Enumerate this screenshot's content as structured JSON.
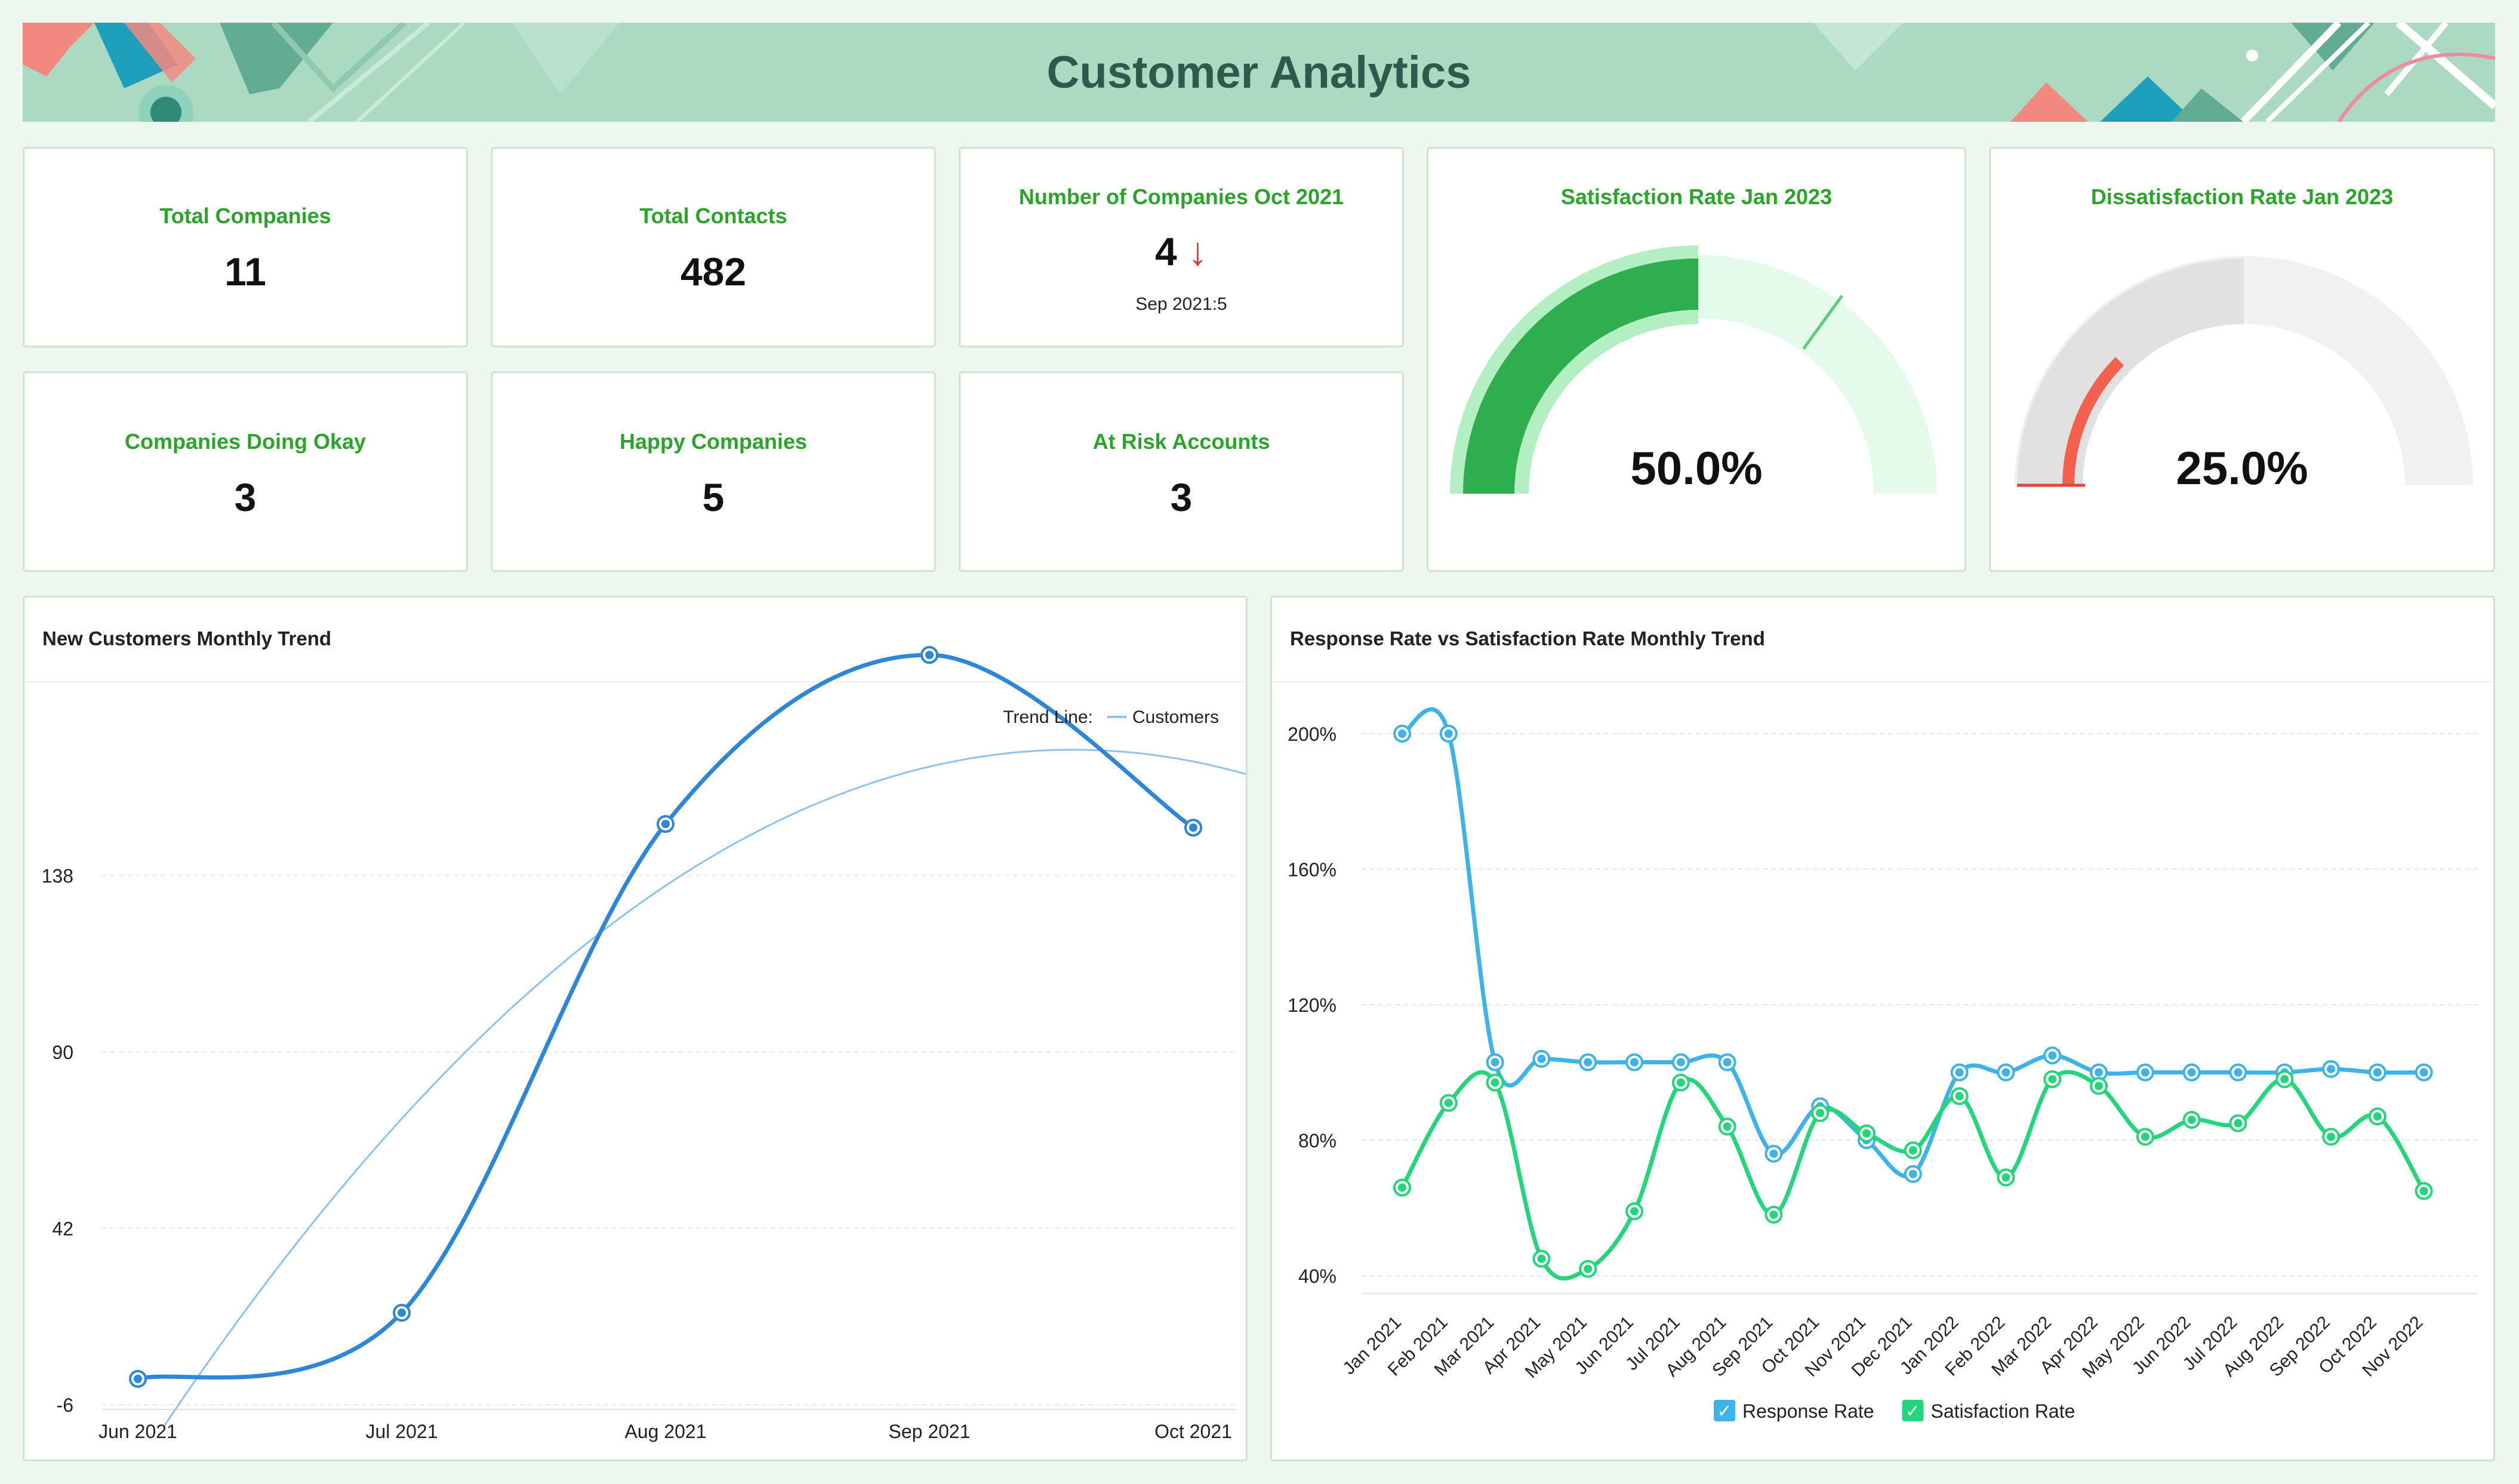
{
  "page_title": "Customer Analytics",
  "kpis": {
    "total_companies": {
      "label": "Total Companies",
      "value": "11"
    },
    "total_contacts": {
      "label": "Total Contacts",
      "value": "482"
    },
    "companies_oct": {
      "label": "Number of Companies Oct 2021",
      "value": "4",
      "trend_arrow": "↓",
      "comparison": "Sep 2021:5"
    },
    "doing_okay": {
      "label": "Companies Doing Okay",
      "value": "3"
    },
    "happy": {
      "label": "Happy Companies",
      "value": "5"
    },
    "at_risk": {
      "label": "At Risk Accounts",
      "value": "3"
    }
  },
  "gauges": {
    "satisfaction": {
      "label": "Satisfaction Rate Jan 2023",
      "value_text": "50.0%",
      "value": 0.5,
      "target": 0.7,
      "color": "#2fae4f",
      "track_color": "#e4fbe9"
    },
    "dissatisfaction": {
      "label": "Dissatisfaction Rate Jan 2023",
      "value_text": "25.0%",
      "value": 0.25,
      "color": "#f4604e",
      "track_color": "#f1f1f1",
      "inner_track_color": "#e1e1e1"
    }
  },
  "chart_data": [
    {
      "type": "line",
      "title": "New Customers Monthly Trend",
      "categories": [
        "Jun 2021",
        "Jul 2021",
        "Aug 2021",
        "Sep 2021",
        "Oct 2021"
      ],
      "series": [
        {
          "name": "Customers",
          "values": [
            1,
            19,
            152,
            198,
            151
          ],
          "color": "#2d86d8"
        }
      ],
      "trend_line": {
        "label": "Trend Line:",
        "type": "polynomial"
      },
      "y_ticks": [
        "-6",
        "42",
        "90",
        "138"
      ],
      "ylim": [
        -6,
        186
      ],
      "legend": "top-right",
      "grid": true
    },
    {
      "type": "line",
      "title": "Response Rate vs Satisfaction Rate Monthly Trend",
      "categories": [
        "Jan 2021",
        "Feb 2021",
        "Mar 2021",
        "Apr 2021",
        "May 2021",
        "Jun 2021",
        "Jul 2021",
        "Aug 2021",
        "Sep 2021",
        "Oct 2021",
        "Nov 2021",
        "Dec 2021",
        "Jan 2022",
        "Feb 2022",
        "Mar 2022",
        "Apr 2022",
        "May 2022",
        "Jun 2022",
        "Jul 2022",
        "Aug 2022",
        "Sep 2022",
        "Oct 2022",
        "Nov 2022"
      ],
      "series": [
        {
          "name": "Response Rate",
          "color": "#3db3ea",
          "values": [
            200,
            200,
            103,
            104,
            103,
            103,
            103,
            103,
            76,
            90,
            80,
            70,
            100,
            100,
            105,
            100,
            100,
            100,
            100,
            100,
            101,
            100,
            100
          ]
        },
        {
          "name": "Satisfaction Rate",
          "color": "#24d67a",
          "values": [
            66,
            91,
            97,
            45,
            42,
            59,
            97,
            84,
            58,
            88,
            82,
            77,
            93,
            69,
            98,
            96,
            81,
            86,
            85,
            98,
            81,
            87,
            65
          ]
        }
      ],
      "y_ticks": [
        "40%",
        "80%",
        "120%",
        "160%",
        "200%"
      ],
      "ylim": [
        40,
        200
      ],
      "legend": "bottom-center",
      "grid": true
    }
  ]
}
